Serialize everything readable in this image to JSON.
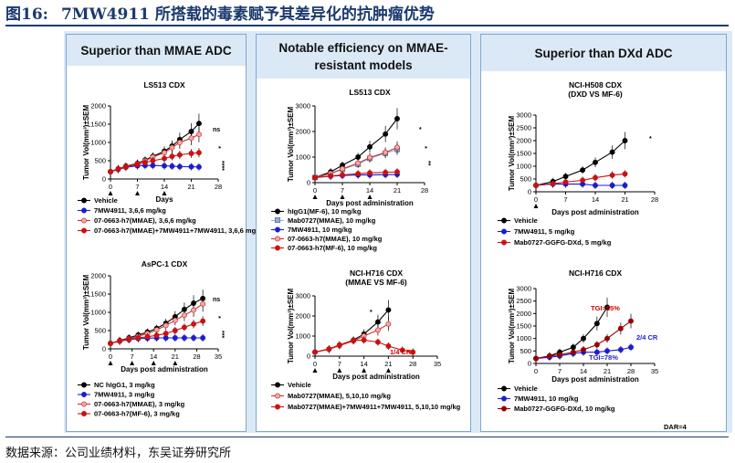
{
  "figure": {
    "number": "图16:",
    "title": "7MW4911 所搭载的毒素赋予其差异化的抗肿瘤优势"
  },
  "panels": [
    {
      "heading": "Superior than MMAE ADC"
    },
    {
      "heading": "Notable efficiency on MMAE-resistant models"
    },
    {
      "heading": "Superior than DXd ADC"
    }
  ],
  "colors": {
    "vehicle": "#000000",
    "blue": "#1c1cd4",
    "pink": "#f2a8a8",
    "red": "#cc1111",
    "light_blue": "#8fb0ee",
    "dark_red": "#990000",
    "panel_bg": "#dbe9f6"
  },
  "chart_data": [
    {
      "id": "ls513_a",
      "type": "line",
      "title": "LS513 CDX",
      "xlabel": "Days",
      "ylabel": "Tumor Vol(mm³)±SEM",
      "xlim": [
        0,
        28
      ],
      "ylim": [
        0,
        2000
      ],
      "xticks": [
        0,
        7,
        14,
        21,
        28
      ],
      "yticks": [
        0,
        500,
        1000,
        1500,
        2000
      ],
      "dosing_days": [
        0,
        7,
        14
      ],
      "significance": [
        "ns",
        "*",
        "****"
      ],
      "series": [
        {
          "name": "Vehicle",
          "color_key": "vehicle",
          "marker": "circle",
          "x": [
            0,
            2,
            4,
            7,
            9,
            11,
            14,
            16,
            18,
            21,
            23
          ],
          "y": [
            200,
            280,
            350,
            430,
            520,
            620,
            760,
            900,
            1080,
            1300,
            1520
          ]
        },
        {
          "name": "7MW4911, 3,6,6 mg/kg",
          "color_key": "blue",
          "marker": "circle",
          "x": [
            0,
            2,
            4,
            7,
            9,
            11,
            14,
            16,
            18,
            21,
            23
          ],
          "y": [
            200,
            260,
            320,
            360,
            370,
            370,
            360,
            350,
            340,
            335,
            330
          ]
        },
        {
          "name": "07-0663-h7(MMAE), 3,6,6 mg/kg",
          "color_key": "pink",
          "marker": "circle",
          "x": [
            0,
            2,
            4,
            7,
            9,
            11,
            14,
            16,
            18,
            21,
            23
          ],
          "y": [
            200,
            280,
            340,
            420,
            500,
            600,
            720,
            860,
            1000,
            1120,
            1220
          ]
        },
        {
          "name": "07-0663-h7(MMAE)+7MW4911+7MW4911, 3,6,6 mg/kg",
          "color_key": "red",
          "marker": "circle",
          "x": [
            0,
            2,
            4,
            7,
            9,
            11,
            14,
            16,
            18,
            21,
            23
          ],
          "y": [
            200,
            270,
            330,
            400,
            450,
            500,
            560,
            620,
            660,
            700,
            720
          ]
        }
      ]
    },
    {
      "id": "aspc1",
      "type": "line",
      "title": "AsPC-1 CDX",
      "xlabel": "Days post administration",
      "ylabel": "Tumor Vol(mm³)±SEM",
      "xlim": [
        0,
        35
      ],
      "ylim": [
        0,
        2000
      ],
      "xticks": [
        0,
        7,
        14,
        21,
        28,
        35
      ],
      "yticks": [
        0,
        500,
        1000,
        1500,
        2000
      ],
      "dosing_days": [
        0,
        7,
        14,
        21
      ],
      "significance": [
        "ns",
        "*",
        "***"
      ],
      "series": [
        {
          "name": "NC hIgG1, 3 mg/kg",
          "color_key": "vehicle",
          "marker": "circle",
          "x": [
            0,
            3,
            6,
            9,
            12,
            15,
            18,
            21,
            24,
            27,
            30
          ],
          "y": [
            150,
            230,
            300,
            380,
            460,
            560,
            700,
            880,
            1080,
            1250,
            1380
          ]
        },
        {
          "name": "7MW4911, 3 mg/kg",
          "color_key": "blue",
          "marker": "circle",
          "x": [
            0,
            3,
            6,
            9,
            12,
            15,
            18,
            21,
            24,
            27,
            30
          ],
          "y": [
            150,
            210,
            250,
            280,
            290,
            300,
            300,
            300,
            300,
            300,
            300
          ]
        },
        {
          "name": "07-0663-h7(MMAE), 3 mg/kg",
          "color_key": "pink",
          "marker": "circle",
          "x": [
            0,
            3,
            6,
            9,
            12,
            15,
            18,
            21,
            24,
            27,
            30
          ],
          "y": [
            150,
            220,
            280,
            340,
            420,
            520,
            640,
            780,
            920,
            1060,
            1230
          ]
        },
        {
          "name": "07-0663-h7(MF-6), 3 mg/kg",
          "color_key": "red",
          "marker": "circle",
          "x": [
            0,
            3,
            6,
            9,
            12,
            15,
            18,
            21,
            24,
            27,
            30
          ],
          "y": [
            150,
            210,
            260,
            300,
            330,
            370,
            420,
            500,
            590,
            680,
            760
          ]
        }
      ]
    },
    {
      "id": "ls513_b",
      "type": "line",
      "title": "LS513 CDX",
      "xlabel": "Days post administration",
      "ylabel": "Tumor Vol(mm³)±SEM",
      "xlim": [
        0,
        28
      ],
      "ylim": [
        0,
        3000
      ],
      "xticks": [
        0,
        7,
        14,
        21,
        28
      ],
      "yticks": [
        0,
        1000,
        2000,
        3000
      ],
      "dosing_days": [
        0,
        7,
        14
      ],
      "significance": [
        "*",
        "*",
        "**"
      ],
      "series": [
        {
          "name": "hIgG1(MF-6), 10 mg/kg",
          "color_key": "vehicle",
          "marker": "circle",
          "x": [
            0,
            4,
            7,
            11,
            14,
            18,
            21
          ],
          "y": [
            200,
            420,
            680,
            1000,
            1400,
            1900,
            2500
          ]
        },
        {
          "name": "Mab0727(MMAE), 10 mg/kg",
          "color_key": "light_blue",
          "marker": "square",
          "x": [
            0,
            4,
            7,
            11,
            14,
            18,
            21
          ],
          "y": [
            200,
            350,
            520,
            720,
            950,
            1150,
            1300
          ]
        },
        {
          "name": "7MW4911, 10 mg/kg",
          "color_key": "blue",
          "marker": "circle",
          "x": [
            0,
            4,
            7,
            11,
            14,
            18,
            21
          ],
          "y": [
            200,
            250,
            280,
            300,
            300,
            310,
            320
          ]
        },
        {
          "name": "07-0663-h7(MMAE), 10 mg/kg",
          "color_key": "pink",
          "marker": "circle",
          "x": [
            0,
            4,
            7,
            11,
            14,
            18,
            21
          ],
          "y": [
            200,
            360,
            540,
            760,
            980,
            1180,
            1380
          ]
        },
        {
          "name": "07-0663-h7(MF-6), 10 mg/kg",
          "color_key": "red",
          "marker": "circle",
          "x": [
            0,
            4,
            7,
            11,
            14,
            18,
            21
          ],
          "y": [
            200,
            260,
            300,
            350,
            380,
            400,
            420
          ]
        }
      ]
    },
    {
      "id": "h716_mmae",
      "type": "line",
      "title": "NCI-H716 CDX",
      "subtitle": "(MMAE VS MF-6)",
      "xlabel": "Days post administration",
      "ylabel": "Tumor Vol(mm³)±SEM",
      "xlim": [
        0,
        35
      ],
      "ylim": [
        0,
        3000
      ],
      "xticks": [
        0,
        7,
        14,
        21,
        28,
        35
      ],
      "yticks": [
        0,
        1000,
        2000,
        3000
      ],
      "dosing_days": [
        0,
        7,
        14,
        21
      ],
      "annotation": "1/4 CR",
      "significance": [
        "*"
      ],
      "series": [
        {
          "name": "Vehicle",
          "color_key": "vehicle",
          "marker": "circle",
          "x": [
            0,
            4,
            7,
            11,
            14,
            18,
            21
          ],
          "y": [
            200,
            350,
            550,
            800,
            1100,
            1700,
            2300
          ]
        },
        {
          "name": "Mab0727(MMAE), 5,10,10 mg/kg",
          "color_key": "pink",
          "marker": "circle",
          "x": [
            0,
            4,
            7,
            11,
            14,
            18,
            21
          ],
          "y": [
            200,
            340,
            520,
            760,
            1000,
            1300,
            1600
          ]
        },
        {
          "name": "Mab0727(MMAE)+7MW4911+7MW4911, 5,10,10 mg/kg",
          "color_key": "red",
          "marker": "circle",
          "x": [
            0,
            4,
            7,
            11,
            14,
            18,
            21,
            25,
            28
          ],
          "y": [
            200,
            360,
            560,
            780,
            800,
            700,
            500,
            300,
            200
          ]
        }
      ]
    },
    {
      "id": "h508",
      "type": "line",
      "title": "NCI-H508 CDX",
      "subtitle": "(DXD VS MF-6)",
      "xlabel": "Days post administration",
      "ylabel": "Tumor Vol(mm³)±SEM",
      "xlim": [
        0,
        28
      ],
      "ylim": [
        0,
        3000
      ],
      "xticks": [
        0,
        7,
        14,
        21,
        28
      ],
      "yticks": [
        0,
        500,
        1000,
        1500,
        2000,
        2500,
        3000
      ],
      "dosing_days": [
        0
      ],
      "significance": [
        "*"
      ],
      "series": [
        {
          "name": "Vehicle",
          "color_key": "vehicle",
          "marker": "circle",
          "x": [
            0,
            4,
            7,
            11,
            14,
            18,
            21
          ],
          "y": [
            250,
            400,
            600,
            850,
            1150,
            1550,
            2000
          ]
        },
        {
          "name": "7MW4911, 5 mg/kg",
          "color_key": "blue",
          "marker": "circle",
          "x": [
            0,
            4,
            7,
            11,
            14,
            18,
            21
          ],
          "y": [
            250,
            300,
            300,
            300,
            250,
            250,
            250
          ]
        },
        {
          "name": "Mab0727-GGFG-DXd, 5 mg/kg",
          "color_key": "red",
          "marker": "circle",
          "x": [
            0,
            4,
            7,
            11,
            14,
            18,
            21
          ],
          "y": [
            250,
            320,
            380,
            450,
            550,
            650,
            700
          ]
        }
      ]
    },
    {
      "id": "h716_dxd",
      "type": "line",
      "title": "NCI-H716 CDX",
      "xlabel": "Days post administration",
      "ylabel": "Tumor Vol(mm³)±SEM",
      "xlim": [
        0,
        35
      ],
      "ylim": [
        0,
        3000
      ],
      "xticks": [
        0,
        7,
        14,
        21,
        28,
        35
      ],
      "yticks": [
        0,
        500,
        1000,
        1500,
        2000,
        2500,
        3000
      ],
      "annotations": [
        "TGI=55%",
        "TGI=78%",
        "2/4 CR"
      ],
      "footnote": "DAR=4",
      "series": [
        {
          "name": "Vehicle",
          "color_key": "vehicle",
          "marker": "circle",
          "x": [
            0,
            4,
            7,
            11,
            14,
            18,
            21
          ],
          "y": [
            200,
            300,
            450,
            650,
            1000,
            1600,
            2250
          ]
        },
        {
          "name": "7MW4911, 10 mg/kg",
          "color_key": "blue",
          "marker": "circle",
          "x": [
            0,
            4,
            7,
            11,
            14,
            18,
            21,
            25,
            28
          ],
          "y": [
            200,
            250,
            300,
            400,
            450,
            450,
            500,
            550,
            650
          ]
        },
        {
          "name": "Mab0727-GGFG-DXd, 10 mg/kg",
          "color_key": "dark_red",
          "marker": "circle",
          "x": [
            0,
            4,
            7,
            11,
            14,
            18,
            21,
            25,
            28
          ],
          "y": [
            200,
            300,
            350,
            450,
            550,
            750,
            1000,
            1400,
            1700
          ]
        }
      ]
    }
  ],
  "source": "数据来源：公司业绩材料，东吴证券研究所"
}
